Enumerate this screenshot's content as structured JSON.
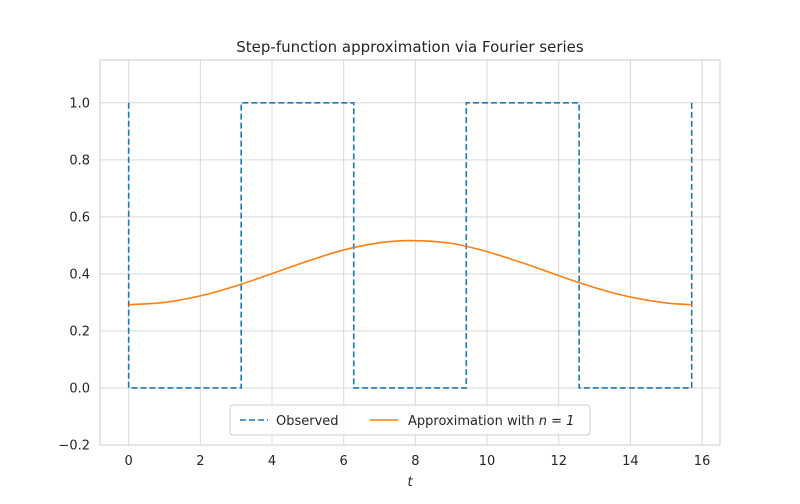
{
  "chart_data": {
    "type": "line",
    "title": "Step-function approximation via Fourier series",
    "xlabel": "t",
    "ylabel": "",
    "xlim": [
      -0.8,
      16.5
    ],
    "ylim": [
      -0.2,
      1.15
    ],
    "xticks": [
      0,
      2,
      4,
      6,
      8,
      10,
      12,
      14,
      16
    ],
    "xtick_labels": [
      "0",
      "2",
      "4",
      "6",
      "8",
      "10",
      "12",
      "14",
      "16"
    ],
    "yticks": [
      -0.2,
      0.0,
      0.2,
      0.4,
      0.6,
      0.8,
      1.0
    ],
    "ytick_labels": [
      "−0.2",
      "0.0",
      "0.2",
      "0.4",
      "0.6",
      "0.8",
      "1.0"
    ],
    "grid": true,
    "legend_position": "lower center",
    "series": [
      {
        "name": "Observed",
        "style": "dashed",
        "color": "#1f77b4",
        "x": [
          0.0,
          0.0,
          3.14,
          3.14,
          6.28,
          6.28,
          9.42,
          9.42,
          12.57,
          12.57,
          15.71,
          15.71
        ],
        "y": [
          1.0,
          0.0,
          0.0,
          1.0,
          1.0,
          0.0,
          0.0,
          1.0,
          1.0,
          0.0,
          0.0,
          1.0
        ]
      },
      {
        "name": "Approximation with ",
        "name_math": "n = 1",
        "style": "solid",
        "color": "#ff7f0e",
        "x": [
          0.0,
          1.0,
          2.0,
          3.0,
          4.0,
          5.0,
          6.0,
          7.0,
          7.85,
          9.0,
          10.0,
          11.0,
          12.0,
          13.0,
          14.0,
          15.0,
          15.71
        ],
        "y": [
          0.292,
          0.3,
          0.323,
          0.358,
          0.401,
          0.445,
          0.484,
          0.509,
          0.517,
          0.507,
          0.478,
          0.438,
          0.394,
          0.352,
          0.319,
          0.298,
          0.292
        ]
      }
    ]
  }
}
